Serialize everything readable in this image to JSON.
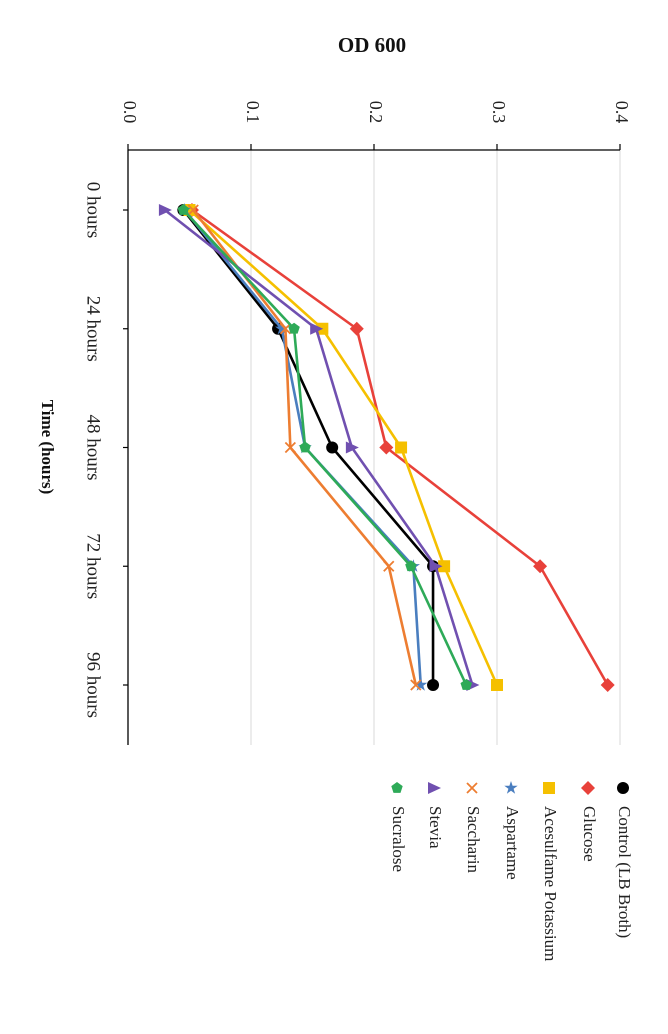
{
  "chart_data": {
    "type": "line",
    "orientation": "rotated-90-clockwise",
    "title": "OD 600",
    "xlabel": "Time (hours)",
    "ylabel": "",
    "categories": [
      "0 hours",
      "24 hours",
      "48 hours",
      "72 hours",
      "96 hours"
    ],
    "ylim": [
      0.0,
      0.4
    ],
    "yticks": [
      "0.0",
      "0.1",
      "0.2",
      "0.3",
      "0.4"
    ],
    "grid": true,
    "legend_position": "right",
    "series": [
      {
        "name": "Control (LB Broth)",
        "color": "#000000",
        "marker": "circle",
        "values": [
          0.045,
          0.122,
          0.166,
          0.248,
          0.248
        ]
      },
      {
        "name": "Glucose",
        "color": "#e8413a",
        "marker": "diamond",
        "values": [
          0.052,
          0.186,
          0.21,
          0.335,
          0.39
        ]
      },
      {
        "name": "Acesulfame Potassium",
        "color": "#f5c000",
        "marker": "square",
        "values": [
          0.05,
          0.158,
          0.222,
          0.257,
          0.3
        ]
      },
      {
        "name": "Aspartame",
        "color": "#4a7ebf",
        "marker": "star",
        "values": [
          0.046,
          0.125,
          0.144,
          0.232,
          0.238
        ]
      },
      {
        "name": "Saccharin",
        "color": "#ed7d31",
        "marker": "x",
        "values": [
          0.053,
          0.128,
          0.132,
          0.212,
          0.234
        ]
      },
      {
        "name": "Stevia",
        "color": "#7050b0",
        "marker": "triangle",
        "values": [
          0.03,
          0.153,
          0.182,
          0.25,
          0.28
        ]
      },
      {
        "name": "Sucralose",
        "color": "#2eaa58",
        "marker": "pentagon",
        "values": [
          0.045,
          0.135,
          0.144,
          0.23,
          0.275
        ]
      }
    ]
  }
}
